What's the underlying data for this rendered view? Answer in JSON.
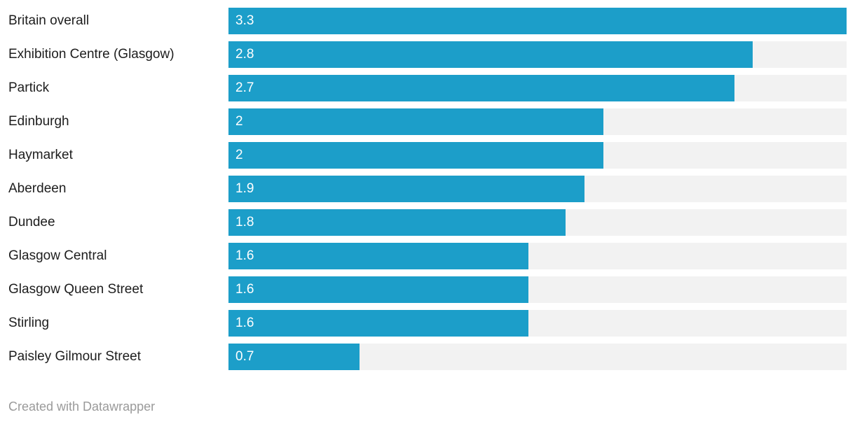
{
  "chart_data": {
    "type": "bar",
    "orientation": "horizontal",
    "title": "",
    "xlabel": "",
    "ylabel": "",
    "xlim": [
      0,
      3.3
    ],
    "grid": false,
    "legend": false,
    "categories": [
      "Britain overall",
      "Exhibition Centre (Glasgow)",
      "Partick",
      "Edinburgh",
      "Haymarket",
      "Aberdeen",
      "Dundee",
      "Glasgow Central",
      "Glasgow Queen Street",
      "Stirling",
      "Paisley Gilmour Street"
    ],
    "values": [
      3.3,
      2.8,
      2.7,
      2,
      2,
      1.9,
      1.8,
      1.6,
      1.6,
      1.6,
      0.7
    ],
    "value_labels": [
      "3.3",
      "2.8",
      "2.7",
      "2",
      "2",
      "1.9",
      "1.8",
      "1.6",
      "1.6",
      "1.6",
      "0.7"
    ],
    "colors": {
      "bar": "#1c9ec9",
      "track": "#f2f2f2",
      "category_text": "#1d1d1d",
      "value_text": "#ffffff",
      "footer_text": "#9a9a9a"
    }
  },
  "footer": {
    "attribution": "Created with Datawrapper"
  }
}
